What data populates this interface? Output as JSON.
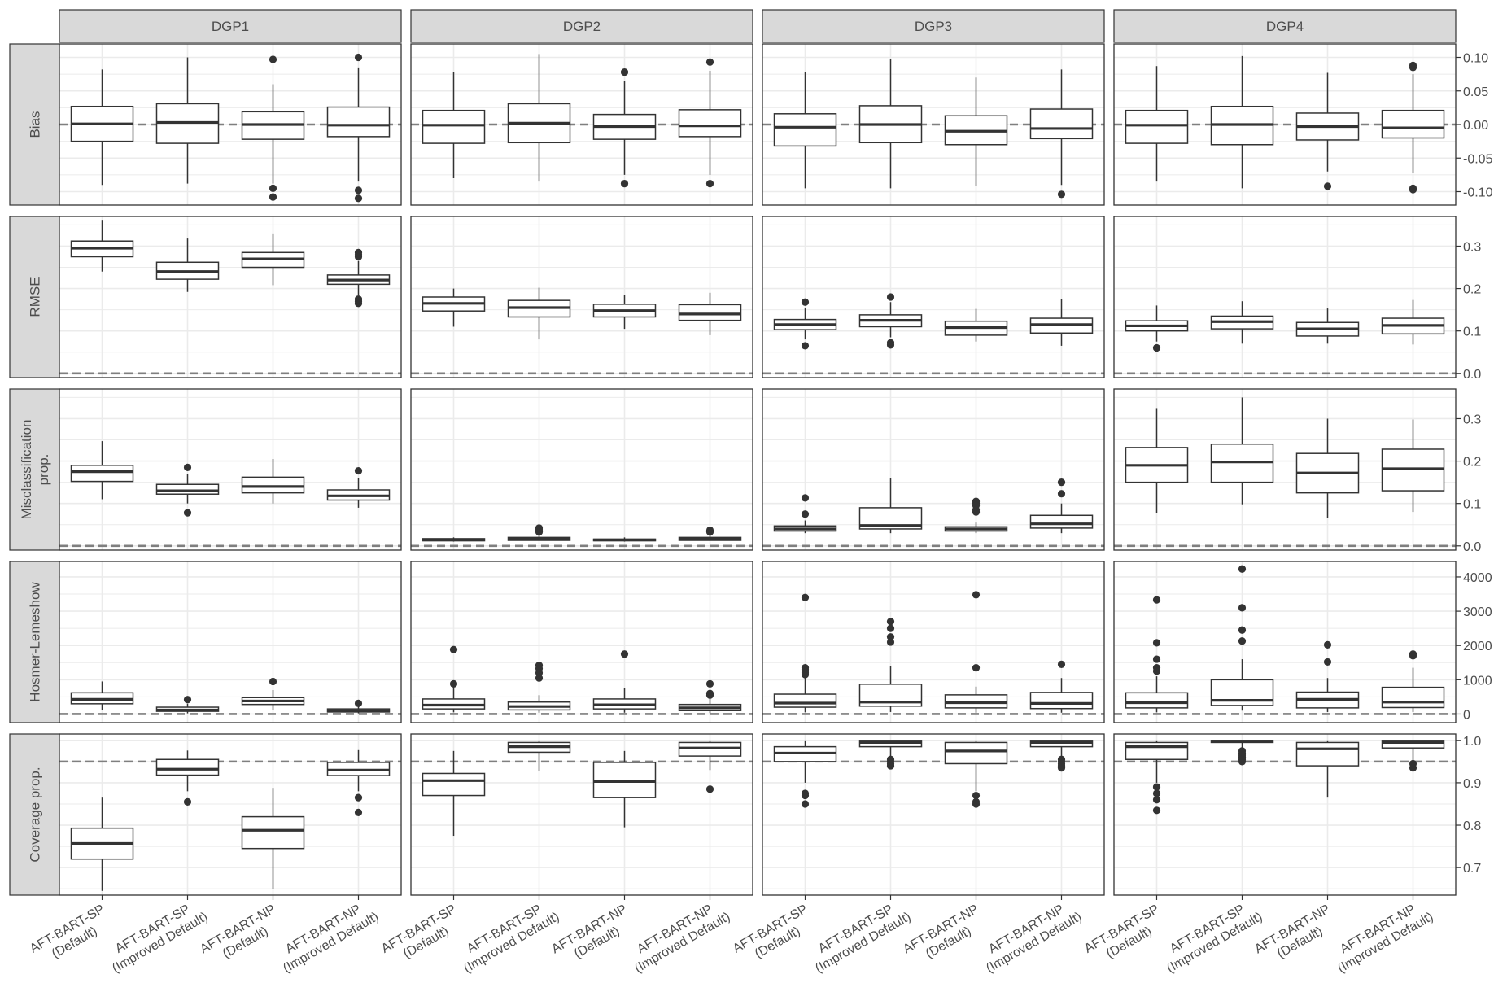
{
  "chart_data": {
    "type": "boxplot",
    "title": "",
    "facet_columns": [
      "DGP1",
      "DGP2",
      "DGP3",
      "DGP4"
    ],
    "facet_rows": [
      {
        "label": [
          "Bias"
        ],
        "ylim": [
          -0.12,
          0.12
        ],
        "ticks": [
          0.1,
          0.05,
          0.0,
          -0.05,
          -0.1
        ],
        "tick_labels": [
          "0.10",
          "0.05",
          "0.00",
          "-0.05",
          "-0.10"
        ],
        "reference": 0.0
      },
      {
        "label": [
          "RMSE"
        ],
        "ylim": [
          -0.01,
          0.37
        ],
        "ticks": [
          0.3,
          0.2,
          0.1,
          0.0
        ],
        "tick_labels": [
          "0.3",
          "0.2",
          "0.1",
          "0.0"
        ],
        "reference": 0.0
      },
      {
        "label": [
          "Misclassification",
          "prop."
        ],
        "ylim": [
          -0.01,
          0.37
        ],
        "ticks": [
          0.3,
          0.2,
          0.1,
          0.0
        ],
        "tick_labels": [
          "0.3",
          "0.2",
          "0.1",
          "0.0"
        ],
        "reference": 0.0
      },
      {
        "label": [
          "Hosmer-Lemeshow"
        ],
        "ylim": [
          -250,
          4450
        ],
        "ticks": [
          4000,
          3000,
          2000,
          1000,
          0
        ],
        "tick_labels": [
          "4000",
          "3000",
          "2000",
          "1000",
          "0"
        ],
        "reference": 0
      },
      {
        "label": [
          "Coverage prop."
        ],
        "ylim": [
          0.635,
          1.015
        ],
        "ticks": [
          1.0,
          0.9,
          0.8,
          0.7
        ],
        "tick_labels": [
          "1.0",
          "0.9",
          "0.8",
          "0.7"
        ],
        "reference": 0.95
      }
    ],
    "categories": [
      [
        "AFT-BART-SP",
        "(Default)"
      ],
      [
        "AFT-BART-SP",
        "(Improved Default)"
      ],
      [
        "AFT-BART-NP",
        "(Default)"
      ],
      [
        "AFT-BART-NP",
        "(Improved Default)"
      ]
    ],
    "boxes": [
      [
        [
          [
            -0.09,
            -0.025,
            0.001,
            0.027,
            0.082,
            []
          ],
          [
            -0.088,
            -0.028,
            0.003,
            0.031,
            0.1,
            []
          ],
          [
            -0.088,
            -0.022,
            0.0,
            0.019,
            0.06,
            [
              0.097,
              -0.095,
              -0.108
            ]
          ],
          [
            -0.085,
            -0.018,
            -0.001,
            0.026,
            0.085,
            [
              0.1,
              -0.098,
              -0.11
            ]
          ]
        ],
        [
          [
            -0.08,
            -0.028,
            -0.001,
            0.021,
            0.078,
            []
          ],
          [
            -0.085,
            -0.027,
            0.002,
            0.031,
            0.105,
            []
          ],
          [
            -0.075,
            -0.022,
            -0.003,
            0.015,
            0.065,
            [
              0.078,
              -0.088
            ]
          ],
          [
            -0.075,
            -0.018,
            -0.002,
            0.022,
            0.08,
            [
              0.093,
              -0.088
            ]
          ]
        ],
        [
          [
            -0.095,
            -0.032,
            -0.004,
            0.016,
            0.078,
            []
          ],
          [
            -0.095,
            -0.027,
            0.0,
            0.028,
            0.097,
            []
          ],
          [
            -0.092,
            -0.03,
            -0.01,
            0.013,
            0.07,
            []
          ],
          [
            -0.09,
            -0.021,
            -0.006,
            0.023,
            0.082,
            [
              -0.104
            ]
          ]
        ],
        [
          [
            -0.085,
            -0.028,
            -0.001,
            0.021,
            0.087,
            []
          ],
          [
            -0.095,
            -0.03,
            0.0,
            0.027,
            0.102,
            []
          ],
          [
            -0.07,
            -0.023,
            -0.003,
            0.017,
            0.077,
            [
              -0.092
            ]
          ],
          [
            -0.072,
            -0.02,
            -0.005,
            0.021,
            0.075,
            [
              0.088,
              0.085,
              -0.095,
              -0.097
            ]
          ]
        ]
      ],
      [
        [
          [
            0.24,
            0.275,
            0.295,
            0.312,
            0.362,
            []
          ],
          [
            0.192,
            0.222,
            0.24,
            0.262,
            0.318,
            []
          ],
          [
            0.208,
            0.25,
            0.27,
            0.285,
            0.33,
            []
          ],
          [
            0.185,
            0.21,
            0.22,
            0.232,
            0.265,
            [
              0.285,
              0.28,
              0.275,
              0.175,
              0.17,
              0.165
            ]
          ]
        ],
        [
          [
            0.11,
            0.147,
            0.165,
            0.18,
            0.2,
            []
          ],
          [
            0.08,
            0.133,
            0.155,
            0.172,
            0.202,
            []
          ],
          [
            0.105,
            0.133,
            0.148,
            0.163,
            0.185,
            []
          ],
          [
            0.09,
            0.125,
            0.14,
            0.162,
            0.19,
            []
          ]
        ],
        [
          [
            0.08,
            0.103,
            0.115,
            0.127,
            0.153,
            [
              0.168,
              0.065
            ]
          ],
          [
            0.085,
            0.11,
            0.125,
            0.138,
            0.168,
            [
              0.18,
              0.072,
              0.067
            ]
          ],
          [
            0.075,
            0.09,
            0.108,
            0.123,
            0.152,
            []
          ],
          [
            0.065,
            0.095,
            0.115,
            0.13,
            0.175,
            []
          ]
        ],
        [
          [
            0.075,
            0.1,
            0.112,
            0.124,
            0.16,
            [
              0.06
            ]
          ],
          [
            0.07,
            0.105,
            0.122,
            0.135,
            0.17,
            []
          ],
          [
            0.07,
            0.088,
            0.105,
            0.12,
            0.153,
            []
          ],
          [
            0.068,
            0.093,
            0.113,
            0.13,
            0.173,
            []
          ]
        ]
      ],
      [
        [
          [
            0.11,
            0.152,
            0.175,
            0.19,
            0.247,
            []
          ],
          [
            0.1,
            0.122,
            0.13,
            0.145,
            0.17,
            [
              0.185,
              0.078
            ]
          ],
          [
            0.1,
            0.125,
            0.14,
            0.162,
            0.205,
            []
          ],
          [
            0.09,
            0.108,
            0.118,
            0.132,
            0.16,
            [
              0.177
            ]
          ]
        ],
        [
          [
            0.01,
            0.012,
            0.014,
            0.017,
            0.02,
            []
          ],
          [
            0.012,
            0.013,
            0.016,
            0.02,
            0.025,
            [
              0.042,
              0.038,
              0.033
            ]
          ],
          [
            0.01,
            0.012,
            0.014,
            0.016,
            0.02,
            []
          ],
          [
            0.012,
            0.013,
            0.016,
            0.02,
            0.025,
            [
              0.037,
              0.033
            ]
          ]
        ],
        [
          [
            0.03,
            0.035,
            0.04,
            0.047,
            0.06,
            [
              0.113,
              0.075
            ]
          ],
          [
            0.03,
            0.04,
            0.048,
            0.09,
            0.16,
            []
          ],
          [
            0.03,
            0.035,
            0.04,
            0.045,
            0.055,
            [
              0.105,
              0.1,
              0.095,
              0.085,
              0.08
            ]
          ],
          [
            0.03,
            0.042,
            0.052,
            0.072,
            0.1,
            [
              0.15,
              0.123
            ]
          ]
        ],
        [
          [
            0.078,
            0.15,
            0.19,
            0.232,
            0.325,
            []
          ],
          [
            0.098,
            0.15,
            0.198,
            0.24,
            0.35,
            []
          ],
          [
            0.065,
            0.125,
            0.172,
            0.218,
            0.3,
            []
          ],
          [
            0.08,
            0.13,
            0.182,
            0.228,
            0.298,
            []
          ]
        ]
      ],
      [
        [
          [
            120,
            300,
            430,
            620,
            950,
            []
          ],
          [
            20,
            80,
            120,
            200,
            300,
            [
              420
            ]
          ],
          [
            120,
            280,
            380,
            480,
            700,
            [
              950
            ]
          ],
          [
            20,
            60,
            100,
            150,
            230,
            [
              310
            ]
          ]
        ],
        [
          [
            50,
            150,
            260,
            440,
            850,
            [
              1880,
              880
            ]
          ],
          [
            40,
            120,
            220,
            350,
            550,
            [
              1420,
              1330,
              1200,
              1050
            ]
          ],
          [
            40,
            150,
            270,
            440,
            750,
            [
              1750
            ]
          ],
          [
            30,
            100,
            180,
            280,
            500,
            [
              880,
              600,
              550
            ]
          ]
        ],
        [
          [
            50,
            200,
            320,
            580,
            1050,
            [
              3400,
              1350,
              1300,
              1250,
              1200,
              1150
            ]
          ],
          [
            60,
            230,
            350,
            870,
            1400,
            [
              2700,
              2500,
              2250,
              2100
            ]
          ],
          [
            40,
            180,
            330,
            560,
            800,
            [
              3480,
              1350
            ]
          ],
          [
            40,
            160,
            310,
            630,
            1050,
            [
              1450
            ]
          ]
        ],
        [
          [
            50,
            180,
            330,
            620,
            1100,
            [
              3330,
              2080,
              1600,
              1350,
              1250
            ]
          ],
          [
            100,
            250,
            400,
            1000,
            1600,
            [
              4230,
              3100,
              2450,
              2130
            ]
          ],
          [
            60,
            180,
            430,
            640,
            1050,
            [
              2020,
              1520
            ]
          ],
          [
            60,
            190,
            350,
            780,
            1350,
            [
              1750,
              1700
            ]
          ]
        ]
      ],
      [
        [
          [
            0.645,
            0.72,
            0.757,
            0.793,
            0.865,
            []
          ],
          [
            0.88,
            0.918,
            0.932,
            0.955,
            0.976,
            [
              0.855
            ]
          ],
          [
            0.65,
            0.745,
            0.788,
            0.82,
            0.888,
            []
          ],
          [
            0.88,
            0.917,
            0.93,
            0.948,
            0.977,
            [
              0.865,
              0.83
            ]
          ]
        ],
        [
          [
            0.775,
            0.87,
            0.905,
            0.922,
            0.975,
            []
          ],
          [
            0.928,
            0.972,
            0.985,
            0.995,
            1.0,
            []
          ],
          [
            0.795,
            0.865,
            0.903,
            0.948,
            0.975,
            []
          ],
          [
            0.93,
            0.963,
            0.982,
            0.995,
            1.0,
            [
              0.885
            ]
          ]
        ],
        [
          [
            0.9,
            0.95,
            0.97,
            0.985,
            1.0,
            [
              0.875,
              0.87,
              0.85
            ]
          ],
          [
            0.96,
            0.985,
            0.995,
            1.0,
            1.0,
            [
              0.955,
              0.95,
              0.945,
              0.94
            ]
          ],
          [
            0.88,
            0.945,
            0.975,
            0.995,
            1.0,
            [
              0.87,
              0.855,
              0.85
            ]
          ],
          [
            0.96,
            0.985,
            0.995,
            1.0,
            1.0,
            [
              0.955,
              0.95,
              0.945,
              0.94,
              0.935
            ]
          ]
        ],
        [
          [
            0.9,
            0.955,
            0.985,
            0.995,
            1.0,
            [
              0.89,
              0.875,
              0.86,
              0.835
            ]
          ],
          [
            0.98,
            0.995,
            0.998,
            1.0,
            1.0,
            [
              0.975,
              0.97,
              0.965,
              0.96,
              0.955,
              0.95
            ]
          ],
          [
            0.865,
            0.94,
            0.98,
            0.995,
            1.0,
            []
          ],
          [
            0.95,
            0.982,
            0.995,
            1.0,
            1.0,
            [
              0.945,
              0.935
            ]
          ]
        ]
      ]
    ],
    "box_format": "[whisker_low, q1, median, q3, whisker_high, [outliers]]",
    "xlabel": "",
    "ylabel": "",
    "grid": true,
    "colors": {
      "box_fill": "#ffffff",
      "stroke": "#333333",
      "reference_line": "#7f7f7f",
      "strip_fill": "#d9d9d9",
      "grid": "#ebebeb"
    }
  }
}
